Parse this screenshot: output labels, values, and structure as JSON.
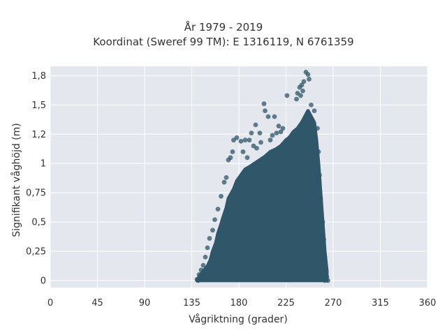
{
  "chart_data": {
    "type": "scatter",
    "title": "År 1979 - 2019",
    "subtitle": "Koordinat (Sweref 99 TM): E 1316119, N 6761359",
    "xlabel": "Vågriktning (grader)",
    "ylabel": "Signifikant våghöjd (m)",
    "xlim": [
      0,
      360
    ],
    "ylim": [
      -0.06,
      1.83
    ],
    "x_ticks": [
      0,
      45,
      90,
      135,
      180,
      225,
      270,
      315,
      360
    ],
    "x_tick_labels": [
      "0",
      "45",
      "90",
      "135",
      "180",
      "225",
      "270",
      "315",
      "360"
    ],
    "y_ticks": [
      0,
      0.25,
      0.5,
      0.75,
      1,
      1.25,
      1.5,
      1.75
    ],
    "y_tick_labels": [
      "0",
      "0,25",
      "0,5",
      "0,75",
      "1",
      "1,2",
      "1,5",
      "1,8"
    ],
    "grid": true,
    "legend": "none",
    "marker_color": "#2f5669",
    "background_color": "#e5e7ef",
    "envelope": {
      "description_points_x": [
        140,
        142,
        146,
        150,
        153,
        155,
        158,
        160,
        163,
        165,
        168,
        170,
        175,
        178,
        182,
        186,
        190,
        195,
        200,
        205,
        210,
        215,
        220,
        225,
        228,
        232,
        236,
        240,
        243,
        246,
        249,
        252,
        254,
        256,
        258,
        260,
        262,
        264,
        264,
        140
      ],
      "description_points_y": [
        0.0,
        0.03,
        0.08,
        0.12,
        0.18,
        0.25,
        0.32,
        0.4,
        0.48,
        0.54,
        0.62,
        0.7,
        0.78,
        0.85,
        0.9,
        0.95,
        0.97,
        1.0,
        1.03,
        1.06,
        1.1,
        1.12,
        1.15,
        1.2,
        1.22,
        1.27,
        1.3,
        1.35,
        1.4,
        1.45,
        1.4,
        1.35,
        1.2,
        1.0,
        0.75,
        0.5,
        0.25,
        0.08,
        0.0,
        0.0
      ]
    },
    "outlier_points": [
      {
        "x": 235,
        "y": 1.55
      },
      {
        "x": 238,
        "y": 1.65
      },
      {
        "x": 240,
        "y": 1.67
      },
      {
        "x": 242,
        "y": 1.7
      },
      {
        "x": 244,
        "y": 1.78
      },
      {
        "x": 246,
        "y": 1.76
      },
      {
        "x": 247,
        "y": 1.72
      },
      {
        "x": 241,
        "y": 1.62
      },
      {
        "x": 249,
        "y": 1.5
      },
      {
        "x": 252,
        "y": 1.45
      },
      {
        "x": 239,
        "y": 1.58
      },
      {
        "x": 236,
        "y": 1.6
      },
      {
        "x": 226,
        "y": 1.58
      },
      {
        "x": 204,
        "y": 1.51
      },
      {
        "x": 205,
        "y": 1.45
      },
      {
        "x": 214,
        "y": 1.4
      },
      {
        "x": 218,
        "y": 1.32
      },
      {
        "x": 222,
        "y": 1.3
      },
      {
        "x": 208,
        "y": 1.4
      },
      {
        "x": 196,
        "y": 1.33
      },
      {
        "x": 192,
        "y": 1.26
      },
      {
        "x": 200,
        "y": 1.26
      },
      {
        "x": 186,
        "y": 1.2
      },
      {
        "x": 190,
        "y": 1.2
      },
      {
        "x": 182,
        "y": 1.19
      },
      {
        "x": 175,
        "y": 1.2
      },
      {
        "x": 178,
        "y": 1.22
      },
      {
        "x": 174,
        "y": 1.1
      },
      {
        "x": 172,
        "y": 1.05
      },
      {
        "x": 170,
        "y": 1.03
      },
      {
        "x": 184,
        "y": 1.1
      },
      {
        "x": 188,
        "y": 1.05
      },
      {
        "x": 194,
        "y": 1.15
      },
      {
        "x": 197,
        "y": 1.13
      },
      {
        "x": 201,
        "y": 1.18
      },
      {
        "x": 210,
        "y": 1.2
      },
      {
        "x": 212,
        "y": 1.24
      },
      {
        "x": 216,
        "y": 1.26
      },
      {
        "x": 220,
        "y": 1.27
      },
      {
        "x": 168,
        "y": 0.88
      },
      {
        "x": 166,
        "y": 0.84
      },
      {
        "x": 163,
        "y": 0.72
      },
      {
        "x": 160,
        "y": 0.61
      },
      {
        "x": 157,
        "y": 0.52
      },
      {
        "x": 155,
        "y": 0.43
      },
      {
        "x": 152,
        "y": 0.36
      },
      {
        "x": 150,
        "y": 0.28
      },
      {
        "x": 148,
        "y": 0.2
      },
      {
        "x": 146,
        "y": 0.13
      },
      {
        "x": 144,
        "y": 0.09
      },
      {
        "x": 142,
        "y": 0.05
      },
      {
        "x": 140,
        "y": 0.01
      },
      {
        "x": 141,
        "y": 0.0
      },
      {
        "x": 143,
        "y": 0.02
      },
      {
        "x": 255,
        "y": 1.3
      },
      {
        "x": 256,
        "y": 1.1
      },
      {
        "x": 257,
        "y": 0.9
      },
      {
        "x": 258,
        "y": 0.7
      },
      {
        "x": 260,
        "y": 0.5
      },
      {
        "x": 261,
        "y": 0.35
      },
      {
        "x": 262,
        "y": 0.2
      },
      {
        "x": 263,
        "y": 0.1
      },
      {
        "x": 264,
        "y": 0.03
      },
      {
        "x": 265,
        "y": 0.0
      },
      {
        "x": 262,
        "y": 0.0
      }
    ]
  }
}
